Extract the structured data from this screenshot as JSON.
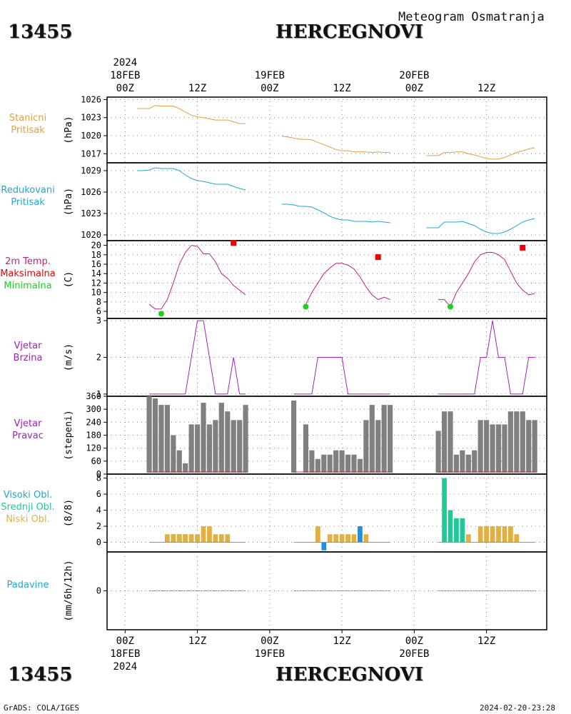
{
  "header": {
    "station_id": "13455",
    "station_name": "HERCEGNOVI",
    "subtitle": "Meteogram Osmatranja"
  },
  "footer": {
    "station_id": "13455",
    "station_name": "HERCEGNOVI",
    "credit": "GrADS: COLA/IGES",
    "timestamp": "2024-02-20-23:28"
  },
  "time_axis": {
    "top_year": "2024",
    "bottom_year": "2024",
    "ticks": [
      {
        "hour": 0,
        "label": "00Z",
        "date": "18FEB"
      },
      {
        "hour": 12,
        "label": "12Z",
        "date": ""
      },
      {
        "hour": 24,
        "label": "00Z",
        "date": "19FEB"
      },
      {
        "hour": 36,
        "label": "12Z",
        "date": ""
      },
      {
        "hour": 48,
        "label": "00Z",
        "date": "20FEB"
      },
      {
        "hour": 60,
        "label": "12Z",
        "date": ""
      }
    ],
    "range_hours": [
      -3,
      70
    ]
  },
  "colors": {
    "pressure_station": "#e0a040",
    "pressure_reduced": "#20a8d0",
    "temperature": "#c02080",
    "max_marker": "#ee0000",
    "min_marker": "#22cc22",
    "wind": "#a020c0",
    "wind_dir_bar": "#808080",
    "cloud_high": "#22c898",
    "cloud_mid": "#22c898",
    "cloud_low": "#e0b040",
    "cloud_extra": "#2090e0",
    "precip": "#20a8d0",
    "grid": "#888888",
    "frame": "#000000"
  },
  "panels": [
    {
      "id": "station_pressure",
      "labels": [
        "Stanicni",
        "Pritisak"
      ],
      "label_colors": [
        "#e0a040",
        "#e0a040"
      ],
      "unit": "(hPa)"
    },
    {
      "id": "reduced_pressure",
      "labels": [
        "Redukovani",
        "Pritisak"
      ],
      "label_colors": [
        "#20a8d0",
        "#20a8d0"
      ],
      "unit": "(hPa)"
    },
    {
      "id": "temperature",
      "labels": [
        "2m Temp.",
        "Maksimalna",
        "Minimalna"
      ],
      "label_colors": [
        "#c02080",
        "#ee0000",
        "#22cc22"
      ],
      "unit": "(C)"
    },
    {
      "id": "wind_speed",
      "labels": [
        "Vjetar",
        "Brzina"
      ],
      "label_colors": [
        "#a020c0",
        "#a020c0"
      ],
      "unit": "(m/s)"
    },
    {
      "id": "wind_direction",
      "labels": [
        "Vjetar",
        "Pravac"
      ],
      "label_colors": [
        "#a020c0",
        "#a020c0"
      ],
      "unit": "(stepeni)"
    },
    {
      "id": "clouds",
      "labels": [
        "Visoki Obl.",
        "Srednji Obl.",
        "Niski Obl."
      ],
      "label_colors": [
        "#20a8d0",
        "#22c898",
        "#e0b040"
      ],
      "unit": "(8/8)"
    },
    {
      "id": "precipitation",
      "labels": [
        "Padavine"
      ],
      "label_colors": [
        "#20a8d0"
      ],
      "unit": "(mm/6h/12h)"
    }
  ],
  "chart_data": [
    {
      "type": "line",
      "panel": "station_pressure",
      "ylim": [
        1015.5,
        1026.4
      ],
      "yticks": [
        1017,
        1020,
        1023,
        1026
      ],
      "series": [
        {
          "x": [
            2,
            3,
            4,
            5,
            6,
            7,
            8,
            9,
            10,
            11,
            12,
            13,
            14,
            15,
            16,
            17,
            18,
            19,
            20
          ],
          "values": [
            1024.5,
            1024.5,
            1024.5,
            1025.0,
            1024.9,
            1024.9,
            1024.9,
            1024.5,
            1023.9,
            1023.4,
            1023.1,
            1023.0,
            1022.8,
            1022.6,
            1022.6,
            1022.6,
            1022.3,
            1022.0,
            1022.0
          ]
        },
        {
          "x": [
            26,
            27,
            28,
            29,
            30,
            31,
            32,
            33,
            34,
            35,
            36,
            37,
            38,
            39,
            40,
            41,
            42,
            43,
            44
          ],
          "values": [
            1019.9,
            1019.8,
            1019.6,
            1019.4,
            1019.4,
            1019.3,
            1018.9,
            1018.5,
            1018.1,
            1017.7,
            1017.5,
            1017.5,
            1017.3,
            1017.3,
            1017.3,
            1017.2,
            1017.3,
            1017.2,
            1017.2
          ]
        },
        {
          "x": [
            50,
            51,
            52,
            53,
            54,
            55,
            56,
            57,
            58,
            59,
            60,
            61,
            62,
            63,
            64,
            65,
            66,
            67,
            68
          ],
          "values": [
            1016.7,
            1016.7,
            1016.7,
            1017.2,
            1017.2,
            1017.3,
            1017.3,
            1017.0,
            1016.8,
            1016.5,
            1016.2,
            1016.1,
            1016.1,
            1016.4,
            1016.8,
            1017.2,
            1017.5,
            1017.8,
            1018.0
          ]
        }
      ]
    },
    {
      "type": "line",
      "panel": "reduced_pressure",
      "ylim": [
        1019.2,
        1030.1
      ],
      "yticks": [
        1020,
        1023,
        1026,
        1029
      ],
      "series": [
        {
          "x": [
            2,
            3,
            4,
            5,
            6,
            7,
            8,
            9,
            10,
            11,
            12,
            13,
            14,
            15,
            16,
            17,
            18,
            19,
            20
          ],
          "values": [
            1029.0,
            1029.0,
            1029.1,
            1029.4,
            1029.3,
            1029.3,
            1029.3,
            1029.0,
            1028.4,
            1027.9,
            1027.6,
            1027.5,
            1027.3,
            1027.1,
            1027.1,
            1027.1,
            1026.8,
            1026.5,
            1026.3
          ]
        },
        {
          "x": [
            26,
            27,
            28,
            29,
            30,
            31,
            32,
            33,
            34,
            35,
            36,
            37,
            38,
            39,
            40,
            41,
            42,
            43,
            44
          ],
          "values": [
            1024.3,
            1024.3,
            1024.2,
            1024.0,
            1024.0,
            1023.9,
            1023.5,
            1023.1,
            1022.6,
            1022.3,
            1022.1,
            1022.1,
            1021.9,
            1021.9,
            1021.9,
            1021.8,
            1021.9,
            1021.8,
            1021.7
          ]
        },
        {
          "x": [
            50,
            51,
            52,
            53,
            54,
            55,
            56,
            57,
            58,
            59,
            60,
            61,
            62,
            63,
            64,
            65,
            66,
            67,
            68
          ],
          "values": [
            1021.0,
            1021.0,
            1021.0,
            1021.8,
            1021.8,
            1021.8,
            1021.9,
            1021.6,
            1021.3,
            1020.8,
            1020.4,
            1020.2,
            1020.2,
            1020.4,
            1020.8,
            1021.3,
            1021.8,
            1022.1,
            1022.3
          ]
        }
      ]
    },
    {
      "type": "line",
      "panel": "temperature",
      "ylim": [
        4.5,
        21.0
      ],
      "yticks": [
        6,
        8,
        10,
        12,
        14,
        16,
        18,
        20
      ],
      "series": [
        {
          "x": [
            4,
            5,
            6,
            7,
            8,
            9,
            10,
            11,
            12,
            13,
            14,
            15,
            16,
            17,
            18,
            19,
            20
          ],
          "values": [
            7.5,
            6.5,
            6.5,
            8.5,
            12,
            16,
            18.5,
            20,
            19.8,
            18.2,
            18.2,
            16.5,
            14,
            13,
            11.5,
            10.5,
            9.5
          ]
        },
        {
          "x": [
            30,
            31,
            32,
            33,
            34,
            35,
            36,
            37,
            38,
            39,
            40,
            41,
            42,
            43,
            44
          ],
          "values": [
            7.5,
            10,
            12,
            14,
            15.2,
            16.2,
            16.2,
            15.8,
            15,
            13.3,
            11.2,
            9.5,
            8.5,
            9,
            8.5
          ]
        },
        {
          "x": [
            52,
            53,
            54,
            55,
            56,
            57,
            58,
            59,
            60,
            61,
            62,
            63,
            64,
            65,
            66,
            67,
            68
          ],
          "values": [
            8.5,
            8.5,
            7,
            10,
            12,
            14,
            16.5,
            18,
            18.5,
            18.5,
            18,
            17,
            14.5,
            12,
            10.5,
            9.5,
            9.8
          ]
        }
      ],
      "max_markers": [
        {
          "x": 18,
          "value": 20.5
        },
        {
          "x": 42,
          "value": 17.5
        },
        {
          "x": 66,
          "value": 19.5
        }
      ],
      "min_markers": [
        {
          "x": 6,
          "value": 5.5
        },
        {
          "x": 30,
          "value": 7
        },
        {
          "x": 54,
          "value": 7
        }
      ]
    },
    {
      "type": "line",
      "panel": "wind_speed",
      "ylim": [
        0.94,
        3.06
      ],
      "yticks": [
        1,
        2,
        3
      ],
      "series": [
        {
          "x": [
            4,
            5,
            6,
            7,
            8,
            9,
            10,
            11,
            12,
            13,
            14,
            15,
            16,
            17,
            18,
            19,
            20
          ],
          "values": [
            1,
            1,
            1,
            1,
            1,
            1,
            1,
            2,
            3,
            3,
            2,
            1,
            1,
            1,
            2,
            1,
            1
          ]
        },
        {
          "x": [
            28,
            29,
            30,
            31,
            32,
            33,
            34,
            35,
            36,
            37,
            38,
            39,
            40,
            41,
            42,
            43,
            44
          ],
          "values": [
            1,
            1,
            1,
            1,
            2,
            2,
            2,
            2,
            2,
            1,
            1,
            1,
            1,
            1,
            1,
            1,
            1
          ]
        },
        {
          "x": [
            52,
            53,
            54,
            55,
            56,
            57,
            58,
            59,
            60,
            61,
            62,
            63,
            64,
            65,
            66,
            67,
            68
          ],
          "values": [
            1,
            1,
            1,
            1,
            1,
            1,
            1,
            2,
            2,
            3,
            2,
            2,
            1,
            1,
            1,
            2,
            2
          ]
        }
      ]
    },
    {
      "type": "bar",
      "panel": "wind_direction",
      "ylim": [
        0,
        360
      ],
      "yticks": [
        0,
        60,
        120,
        180,
        240,
        300,
        360
      ],
      "series": [
        {
          "x": [
            4,
            5,
            6,
            7,
            8,
            9,
            10,
            11,
            12,
            13,
            14,
            15,
            16,
            17,
            18,
            19,
            20
          ],
          "values": [
            360,
            350,
            320,
            320,
            180,
            110,
            50,
            230,
            230,
            330,
            230,
            250,
            330,
            290,
            250,
            250,
            320
          ]
        },
        {
          "x": [
            28,
            30,
            31,
            32,
            33,
            34,
            35,
            36,
            37,
            38,
            39,
            40,
            41,
            42,
            43,
            44
          ],
          "values": [
            340,
            230,
            110,
            70,
            90,
            90,
            110,
            110,
            90,
            90,
            70,
            250,
            320,
            250,
            320,
            320
          ]
        },
        {
          "x": [
            52,
            53,
            54,
            55,
            56,
            57,
            58,
            59,
            60,
            61,
            62,
            63,
            64,
            65,
            66,
            67,
            68
          ],
          "values": [
            200,
            290,
            290,
            90,
            110,
            90,
            110,
            250,
            250,
            230,
            230,
            230,
            290,
            290,
            290,
            250,
            250
          ]
        }
      ]
    },
    {
      "type": "bar",
      "panel": "clouds",
      "ylim": [
        -1.2,
        8.5
      ],
      "yticks": [
        0,
        2,
        4,
        6,
        8
      ],
      "series": [
        {
          "name": "Visoki Obl.",
          "x": [
            53,
            54,
            55,
            56
          ],
          "values": [
            8,
            4,
            3,
            3
          ]
        },
        {
          "name": "Srednji Obl.",
          "x": [
            8,
            9,
            10
          ],
          "values": [
            1,
            1,
            1
          ]
        },
        {
          "name": "Niski Obl.",
          "x": [
            7,
            8,
            9,
            10,
            11,
            12,
            13,
            14,
            15,
            16,
            17,
            18,
            19,
            20,
            32,
            33,
            34,
            35,
            36,
            37,
            38,
            39,
            40,
            57,
            59,
            60,
            61,
            62,
            63,
            64,
            65
          ],
          "values": [
            1,
            1,
            1,
            1,
            1,
            1,
            2,
            2,
            1,
            1,
            1,
            0,
            0,
            0,
            2,
            0,
            1,
            1,
            1,
            1,
            1,
            1,
            1,
            1,
            2,
            2,
            2,
            2,
            2,
            2,
            1
          ]
        },
        {
          "name": "extra",
          "x": [
            33,
            39
          ],
          "values": [
            -1,
            2
          ]
        }
      ]
    },
    {
      "type": "line",
      "panel": "precipitation",
      "ylim": [
        -1,
        1
      ],
      "yticks": [
        0
      ],
      "series": [
        {
          "x": [
            4,
            20
          ],
          "values": [
            0,
            0
          ]
        },
        {
          "x": [
            28,
            44
          ],
          "values": [
            0,
            0
          ]
        },
        {
          "x": [
            52,
            68
          ],
          "values": [
            0,
            0
          ]
        }
      ]
    }
  ]
}
